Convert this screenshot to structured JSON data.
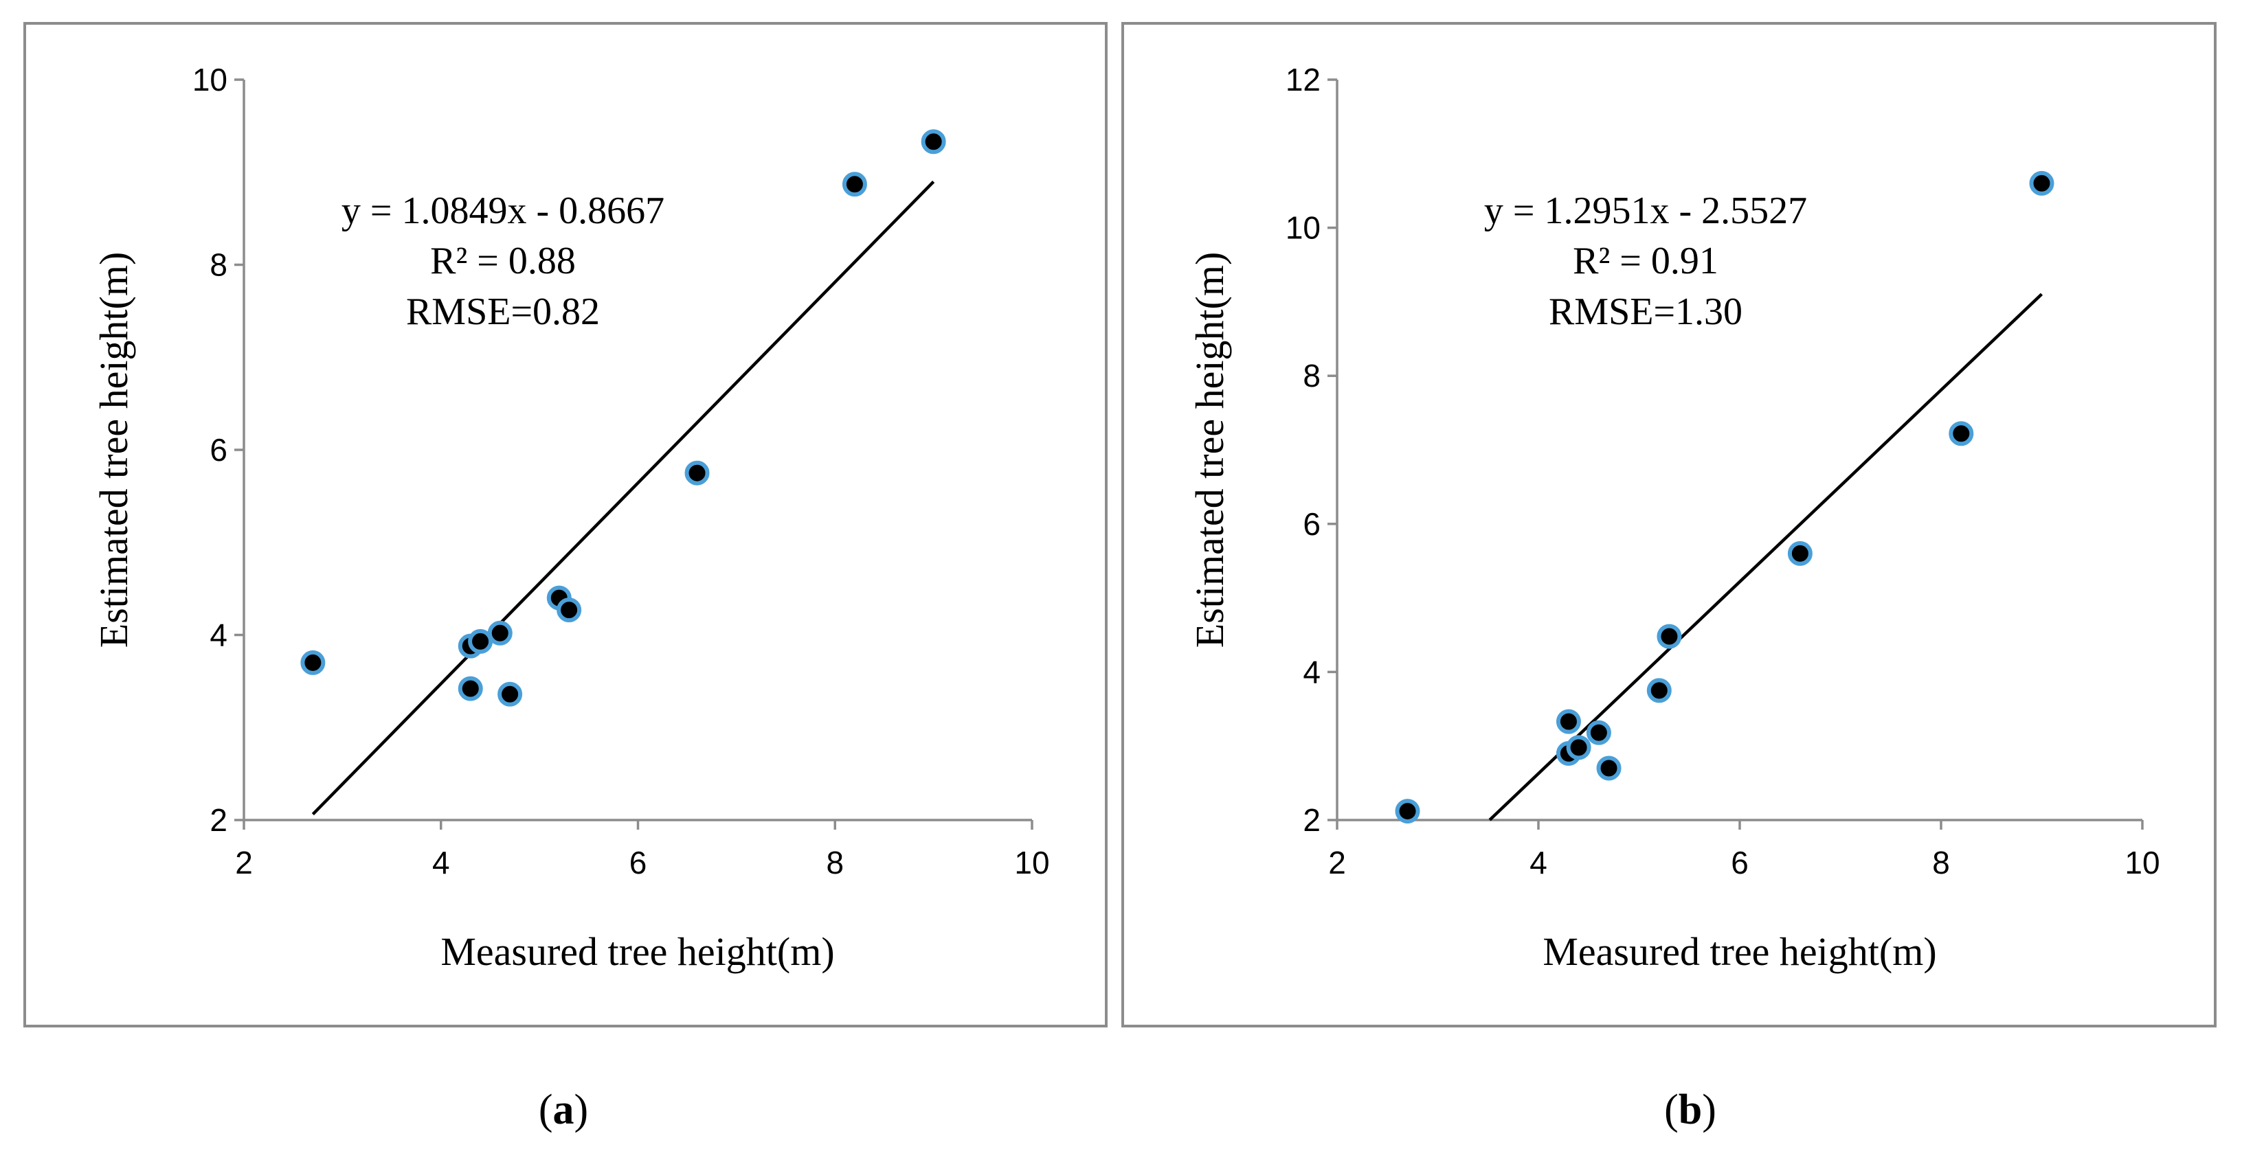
{
  "chart_data": [
    {
      "type": "scatter",
      "panel_label": "a",
      "xlabel": "Measured tree height(m)",
      "ylabel": "Estimated tree height(m)",
      "xlim": [
        2,
        10
      ],
      "ylim": [
        2,
        10
      ],
      "xticks": [
        2,
        4,
        6,
        8,
        10
      ],
      "yticks": [
        2,
        4,
        6,
        8,
        10
      ],
      "points": [
        {
          "x": 2.7,
          "y": 3.7
        },
        {
          "x": 4.3,
          "y": 3.88
        },
        {
          "x": 4.4,
          "y": 3.93
        },
        {
          "x": 4.6,
          "y": 4.02
        },
        {
          "x": 4.3,
          "y": 3.42
        },
        {
          "x": 4.7,
          "y": 3.36
        },
        {
          "x": 5.2,
          "y": 4.4
        },
        {
          "x": 5.3,
          "y": 4.27
        },
        {
          "x": 6.6,
          "y": 5.75
        },
        {
          "x": 8.2,
          "y": 8.87
        },
        {
          "x": 9.0,
          "y": 9.33
        }
      ],
      "trendline": {
        "slope": 1.0849,
        "intercept": -0.8667,
        "x_range": [
          2.7,
          9.0
        ]
      },
      "annotations": [
        "y = 1.0849x - 0.8667",
        "R² = 0.88",
        "RMSE=0.82"
      ]
    },
    {
      "type": "scatter",
      "panel_label": "b",
      "xlabel": "Measured tree height(m)",
      "ylabel": "Estimated tree height(m)",
      "xlim": [
        2,
        10
      ],
      "ylim": [
        2,
        12
      ],
      "xticks": [
        2,
        4,
        6,
        8,
        10
      ],
      "yticks": [
        2,
        4,
        6,
        8,
        10,
        12
      ],
      "points": [
        {
          "x": 2.7,
          "y": 2.12
        },
        {
          "x": 4.3,
          "y": 3.33
        },
        {
          "x": 4.3,
          "y": 2.9
        },
        {
          "x": 4.4,
          "y": 2.98
        },
        {
          "x": 4.6,
          "y": 3.18
        },
        {
          "x": 4.7,
          "y": 2.7
        },
        {
          "x": 5.2,
          "y": 3.75
        },
        {
          "x": 5.3,
          "y": 4.48
        },
        {
          "x": 6.6,
          "y": 5.6
        },
        {
          "x": 8.2,
          "y": 7.22
        },
        {
          "x": 9.0,
          "y": 10.6
        }
      ],
      "trendline": {
        "slope": 1.2951,
        "intercept": -2.5527,
        "x_range": [
          3.516,
          9.0
        ]
      },
      "annotations": [
        "y = 1.2951x - 2.5527",
        "R² = 0.91",
        "RMSE=1.30"
      ]
    }
  ]
}
